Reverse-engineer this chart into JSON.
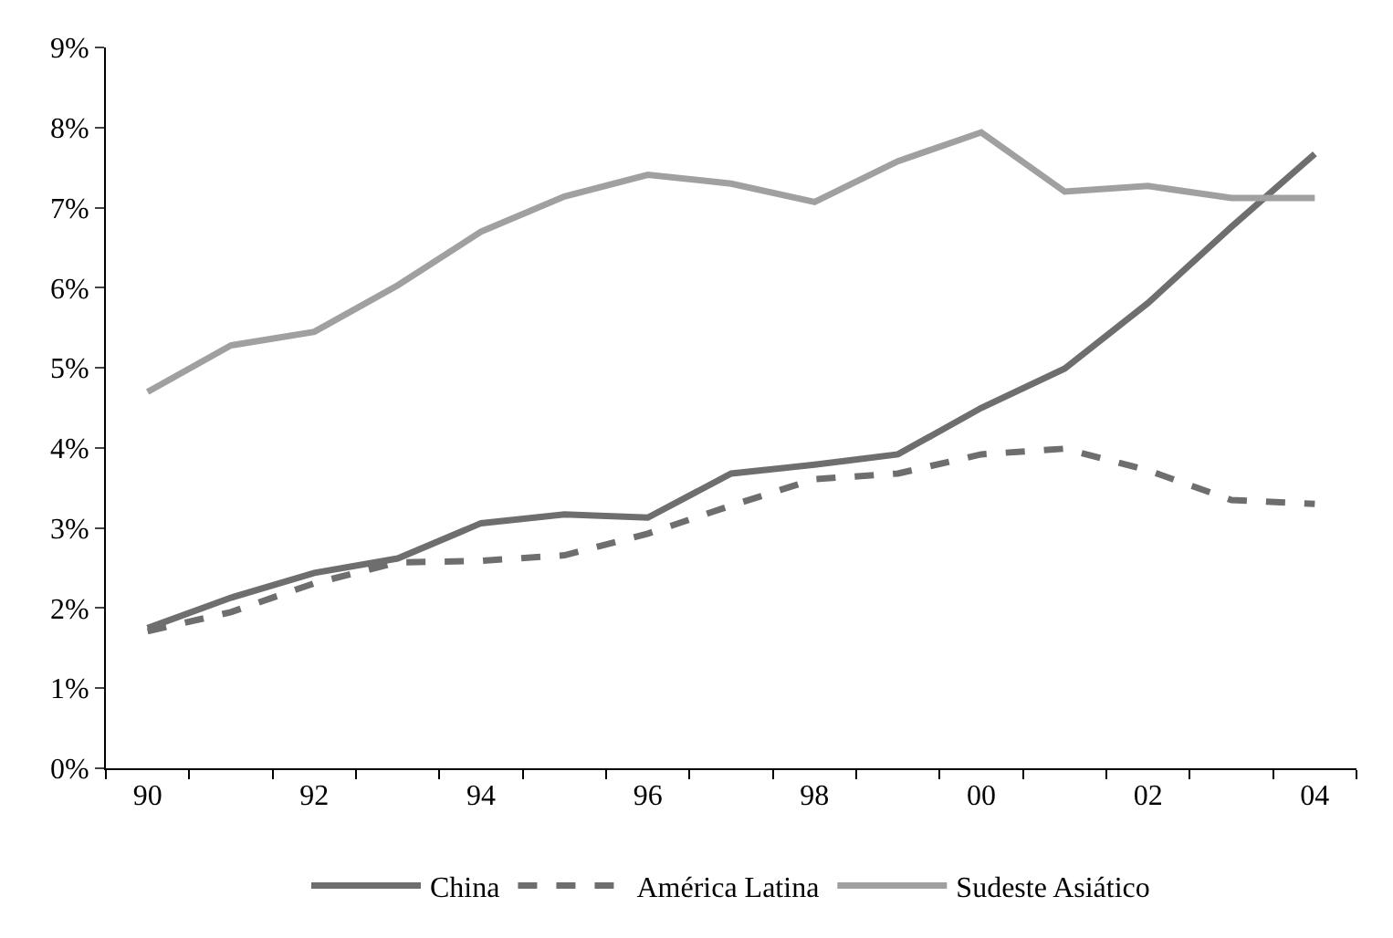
{
  "chart_data": {
    "type": "line",
    "categories": [
      "90",
      null,
      "92",
      null,
      "94",
      null,
      "96",
      null,
      "98",
      null,
      "00",
      null,
      "02",
      null,
      "04"
    ],
    "series": [
      {
        "name": "China",
        "color": "#6e6e6e",
        "line_style": "solid",
        "values": [
          1.75,
          2.13,
          2.44,
          2.62,
          3.06,
          3.17,
          3.13,
          3.68,
          3.79,
          3.92,
          4.5,
          4.99,
          5.81,
          6.76,
          7.67
        ]
      },
      {
        "name": "América Latina",
        "color": "#6e6e6e",
        "line_style": "dashed",
        "values": [
          1.71,
          1.95,
          2.31,
          2.57,
          2.59,
          2.66,
          2.93,
          3.28,
          3.61,
          3.68,
          3.92,
          3.99,
          3.72,
          3.35,
          3.3
        ]
      },
      {
        "name": "Sudeste Asiático",
        "color": "#a0a0a0",
        "line_style": "solid",
        "values": [
          4.7,
          5.28,
          5.45,
          6.03,
          6.7,
          7.14,
          7.41,
          7.3,
          7.07,
          7.58,
          7.94,
          7.2,
          7.27,
          7.12,
          7.12
        ]
      }
    ],
    "ylim": [
      0,
      9
    ],
    "yticks": [
      {
        "value": 0,
        "label": "0%"
      },
      {
        "value": 1,
        "label": "1%"
      },
      {
        "value": 2,
        "label": "2%"
      },
      {
        "value": 3,
        "label": "3%"
      },
      {
        "value": 4,
        "label": "4%"
      },
      {
        "value": 5,
        "label": "5%"
      },
      {
        "value": 6,
        "label": "6%"
      },
      {
        "value": 7,
        "label": "7%"
      },
      {
        "value": 8,
        "label": "8%"
      },
      {
        "value": 9,
        "label": "9%"
      }
    ],
    "legend": "bottom",
    "marker": "none"
  }
}
